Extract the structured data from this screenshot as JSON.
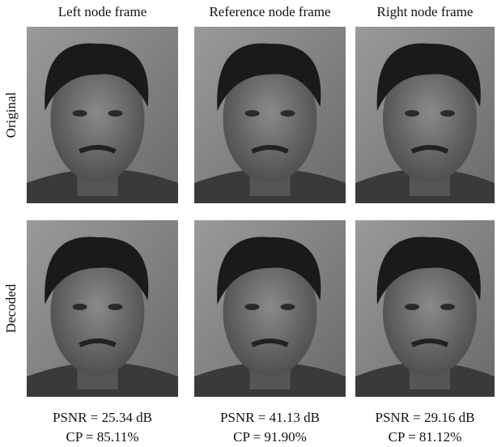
{
  "columns": [
    {
      "title": "Left node frame",
      "caption": {
        "psnr": "PSNR = 25.34 dB",
        "cp": "CP = 85.11%"
      }
    },
    {
      "title": "Reference node frame",
      "caption": {
        "psnr": "PSNR = 41.13 dB",
        "cp": "CP = 91.90%"
      }
    },
    {
      "title": "Right node frame",
      "caption": {
        "psnr": "PSNR = 29.16 dB",
        "cp": "CP = 81.12%"
      }
    }
  ],
  "rows": [
    {
      "label": "Original"
    },
    {
      "label": "Decoded"
    }
  ]
}
